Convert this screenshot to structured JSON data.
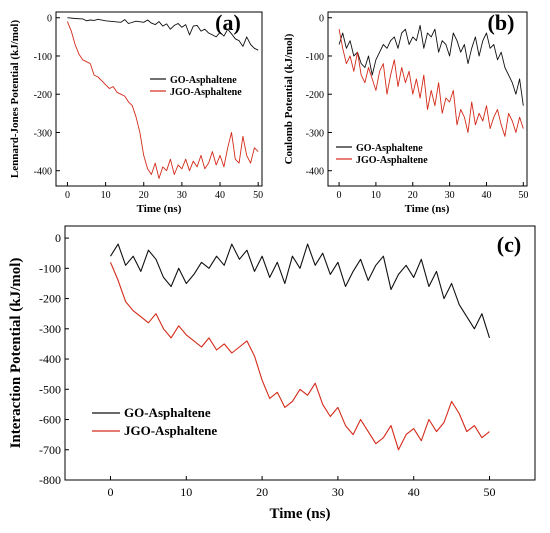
{
  "chart_data": [
    {
      "panel": "(a)",
      "type": "line",
      "xlabel": "Time (ns)",
      "ylabel": "Lennard-Jones Potential (kJ/mol)",
      "xlim": [
        -3,
        51
      ],
      "ylim": [
        -440,
        15
      ],
      "xticks": [
        0,
        10,
        20,
        30,
        40,
        50
      ],
      "yticks": [
        0,
        -100,
        -200,
        -300,
        -400
      ],
      "legend_position": "middle-right",
      "series": [
        {
          "name": "GO-Asphaltene",
          "color": "#111111",
          "x": [
            0,
            2,
            4,
            5,
            6,
            7,
            8,
            10,
            12,
            14,
            15,
            16,
            18,
            20,
            21,
            22,
            23,
            24,
            25,
            26,
            27,
            28,
            29,
            30,
            31,
            32,
            33,
            34,
            35,
            36,
            37,
            38,
            39,
            40,
            41,
            42,
            43,
            44,
            45,
            46,
            47,
            48,
            49,
            50
          ],
          "y": [
            0,
            -2,
            -3,
            -8,
            -6,
            -7,
            -4,
            -8,
            -10,
            -12,
            -5,
            -15,
            -9,
            -12,
            -6,
            -14,
            -18,
            -10,
            -22,
            -16,
            -30,
            -20,
            -15,
            -25,
            -18,
            -45,
            -22,
            -20,
            -35,
            -30,
            -40,
            -45,
            -50,
            -38,
            -48,
            -30,
            -42,
            -55,
            -60,
            -75,
            -50,
            -70,
            -80,
            -85
          ]
        },
        {
          "name": "JGO-Asphaltene",
          "color": "#d42a1a",
          "x": [
            0,
            1,
            2,
            3,
            4,
            5,
            6,
            7,
            8,
            9,
            10,
            11,
            12,
            13,
            14,
            15,
            16,
            17,
            18,
            19,
            20,
            21,
            22,
            23,
            24,
            25,
            26,
            27,
            28,
            29,
            30,
            31,
            32,
            33,
            34,
            35,
            36,
            37,
            38,
            39,
            40,
            41,
            42,
            43,
            44,
            45,
            46,
            47,
            48,
            49,
            50
          ],
          "y": [
            -10,
            -35,
            -70,
            -95,
            -110,
            -115,
            -120,
            -150,
            -155,
            -165,
            -175,
            -185,
            -180,
            -195,
            -200,
            -205,
            -220,
            -230,
            -260,
            -300,
            -360,
            -395,
            -410,
            -380,
            -420,
            -390,
            -400,
            -370,
            -410,
            -385,
            -395,
            -370,
            -400,
            -375,
            -390,
            -360,
            -395,
            -380,
            -350,
            -385,
            -360,
            -390,
            -340,
            -300,
            -370,
            -380,
            -310,
            -360,
            -380,
            -340,
            -350
          ]
        }
      ]
    },
    {
      "panel": "(b)",
      "type": "line",
      "xlabel": "Time (ns)",
      "ylabel": "Coulomb Potential (kJ/mol)",
      "xlim": [
        -3,
        51
      ],
      "ylim": [
        -440,
        15
      ],
      "xticks": [
        0,
        10,
        20,
        30,
        40,
        50
      ],
      "yticks": [
        0,
        -100,
        -200,
        -300,
        -400
      ],
      "legend_position": "bottom-left",
      "series": [
        {
          "name": "GO-Asphaltene",
          "color": "#111111",
          "x": [
            0,
            1,
            2,
            3,
            4,
            5,
            6,
            7,
            8,
            9,
            10,
            11,
            12,
            13,
            14,
            15,
            16,
            17,
            18,
            19,
            20,
            21,
            22,
            23,
            24,
            25,
            26,
            27,
            28,
            29,
            30,
            31,
            32,
            33,
            34,
            35,
            36,
            37,
            38,
            39,
            40,
            41,
            42,
            43,
            44,
            45,
            46,
            47,
            48,
            49,
            50
          ],
          "y": [
            -70,
            -40,
            -80,
            -60,
            -100,
            -90,
            -120,
            -130,
            -100,
            -150,
            -110,
            -90,
            -70,
            -80,
            -60,
            -50,
            -80,
            -40,
            -30,
            -70,
            -50,
            -60,
            -20,
            -80,
            -40,
            -50,
            -30,
            -90,
            -60,
            -70,
            -100,
            -40,
            -60,
            -90,
            -70,
            -120,
            -80,
            -50,
            -100,
            -60,
            -40,
            -80,
            -70,
            -110,
            -90,
            -130,
            -150,
            -170,
            -200,
            -160,
            -230
          ]
        },
        {
          "name": "JGO-Asphaltene",
          "color": "#d42a1a",
          "x": [
            0,
            1,
            2,
            3,
            4,
            5,
            6,
            7,
            8,
            9,
            10,
            11,
            12,
            13,
            14,
            15,
            16,
            17,
            18,
            19,
            20,
            21,
            22,
            23,
            24,
            25,
            26,
            27,
            28,
            29,
            30,
            31,
            32,
            33,
            34,
            35,
            36,
            37,
            38,
            39,
            40,
            41,
            42,
            43,
            44,
            45,
            46,
            47,
            48,
            49,
            50
          ],
          "y": [
            -30,
            -80,
            -120,
            -100,
            -140,
            -90,
            -150,
            -170,
            -130,
            -160,
            -190,
            -140,
            -120,
            -200,
            -150,
            -110,
            -180,
            -130,
            -170,
            -140,
            -200,
            -160,
            -210,
            -150,
            -240,
            -190,
            -230,
            -170,
            -250,
            -210,
            -220,
            -190,
            -280,
            -240,
            -260,
            -300,
            -220,
            -280,
            -250,
            -270,
            -230,
            -290,
            -260,
            -240,
            -280,
            -310,
            -250,
            -270,
            -300,
            -260,
            -290
          ]
        }
      ]
    },
    {
      "panel": "(c)",
      "type": "line",
      "xlabel": "Time (ns)",
      "ylabel": "Interaction Potential (kJ/mol)",
      "xlim": [
        -6,
        56
      ],
      "ylim": [
        -800,
        40
      ],
      "xticks": [
        0,
        10,
        20,
        30,
        40,
        50
      ],
      "yticks": [
        0,
        -100,
        -200,
        -300,
        -400,
        -500,
        -600,
        -700,
        -800
      ],
      "legend_position": "bottom-left",
      "series": [
        {
          "name": "GO-Asphaltene",
          "color": "#111111",
          "x": [
            0,
            1,
            2,
            3,
            4,
            5,
            6,
            7,
            8,
            9,
            10,
            11,
            12,
            13,
            14,
            15,
            16,
            17,
            18,
            19,
            20,
            21,
            22,
            23,
            24,
            25,
            26,
            27,
            28,
            29,
            30,
            31,
            32,
            33,
            34,
            35,
            36,
            37,
            38,
            39,
            40,
            41,
            42,
            43,
            44,
            45,
            46,
            47,
            48,
            49,
            50
          ],
          "y": [
            -60,
            -20,
            -90,
            -60,
            -110,
            -40,
            -70,
            -130,
            -160,
            -100,
            -150,
            -120,
            -80,
            -100,
            -60,
            -90,
            -20,
            -70,
            -40,
            -110,
            -60,
            -130,
            -80,
            -150,
            -60,
            -100,
            -20,
            -90,
            -50,
            -120,
            -80,
            -160,
            -110,
            -70,
            -140,
            -90,
            -60,
            -170,
            -120,
            -90,
            -130,
            -70,
            -160,
            -110,
            -200,
            -150,
            -220,
            -260,
            -300,
            -250,
            -330
          ]
        },
        {
          "name": "JGO-Asphaltene",
          "color": "#d42a1a",
          "x": [
            0,
            1,
            2,
            3,
            4,
            5,
            6,
            7,
            8,
            9,
            10,
            11,
            12,
            13,
            14,
            15,
            16,
            17,
            18,
            19,
            20,
            21,
            22,
            23,
            24,
            25,
            26,
            27,
            28,
            29,
            30,
            31,
            32,
            33,
            34,
            35,
            36,
            37,
            38,
            39,
            40,
            41,
            42,
            43,
            44,
            45,
            46,
            47,
            48,
            49,
            50
          ],
          "y": [
            -80,
            -140,
            -210,
            -240,
            -260,
            -280,
            -250,
            -300,
            -330,
            -290,
            -320,
            -340,
            -360,
            -330,
            -370,
            -350,
            -380,
            -360,
            -340,
            -390,
            -470,
            -530,
            -510,
            -560,
            -540,
            -500,
            -520,
            -480,
            -550,
            -590,
            -560,
            -620,
            -650,
            -600,
            -640,
            -680,
            -660,
            -620,
            -700,
            -650,
            -630,
            -670,
            -600,
            -640,
            -610,
            -540,
            -580,
            -640,
            -620,
            -660,
            -640
          ]
        }
      ]
    }
  ]
}
